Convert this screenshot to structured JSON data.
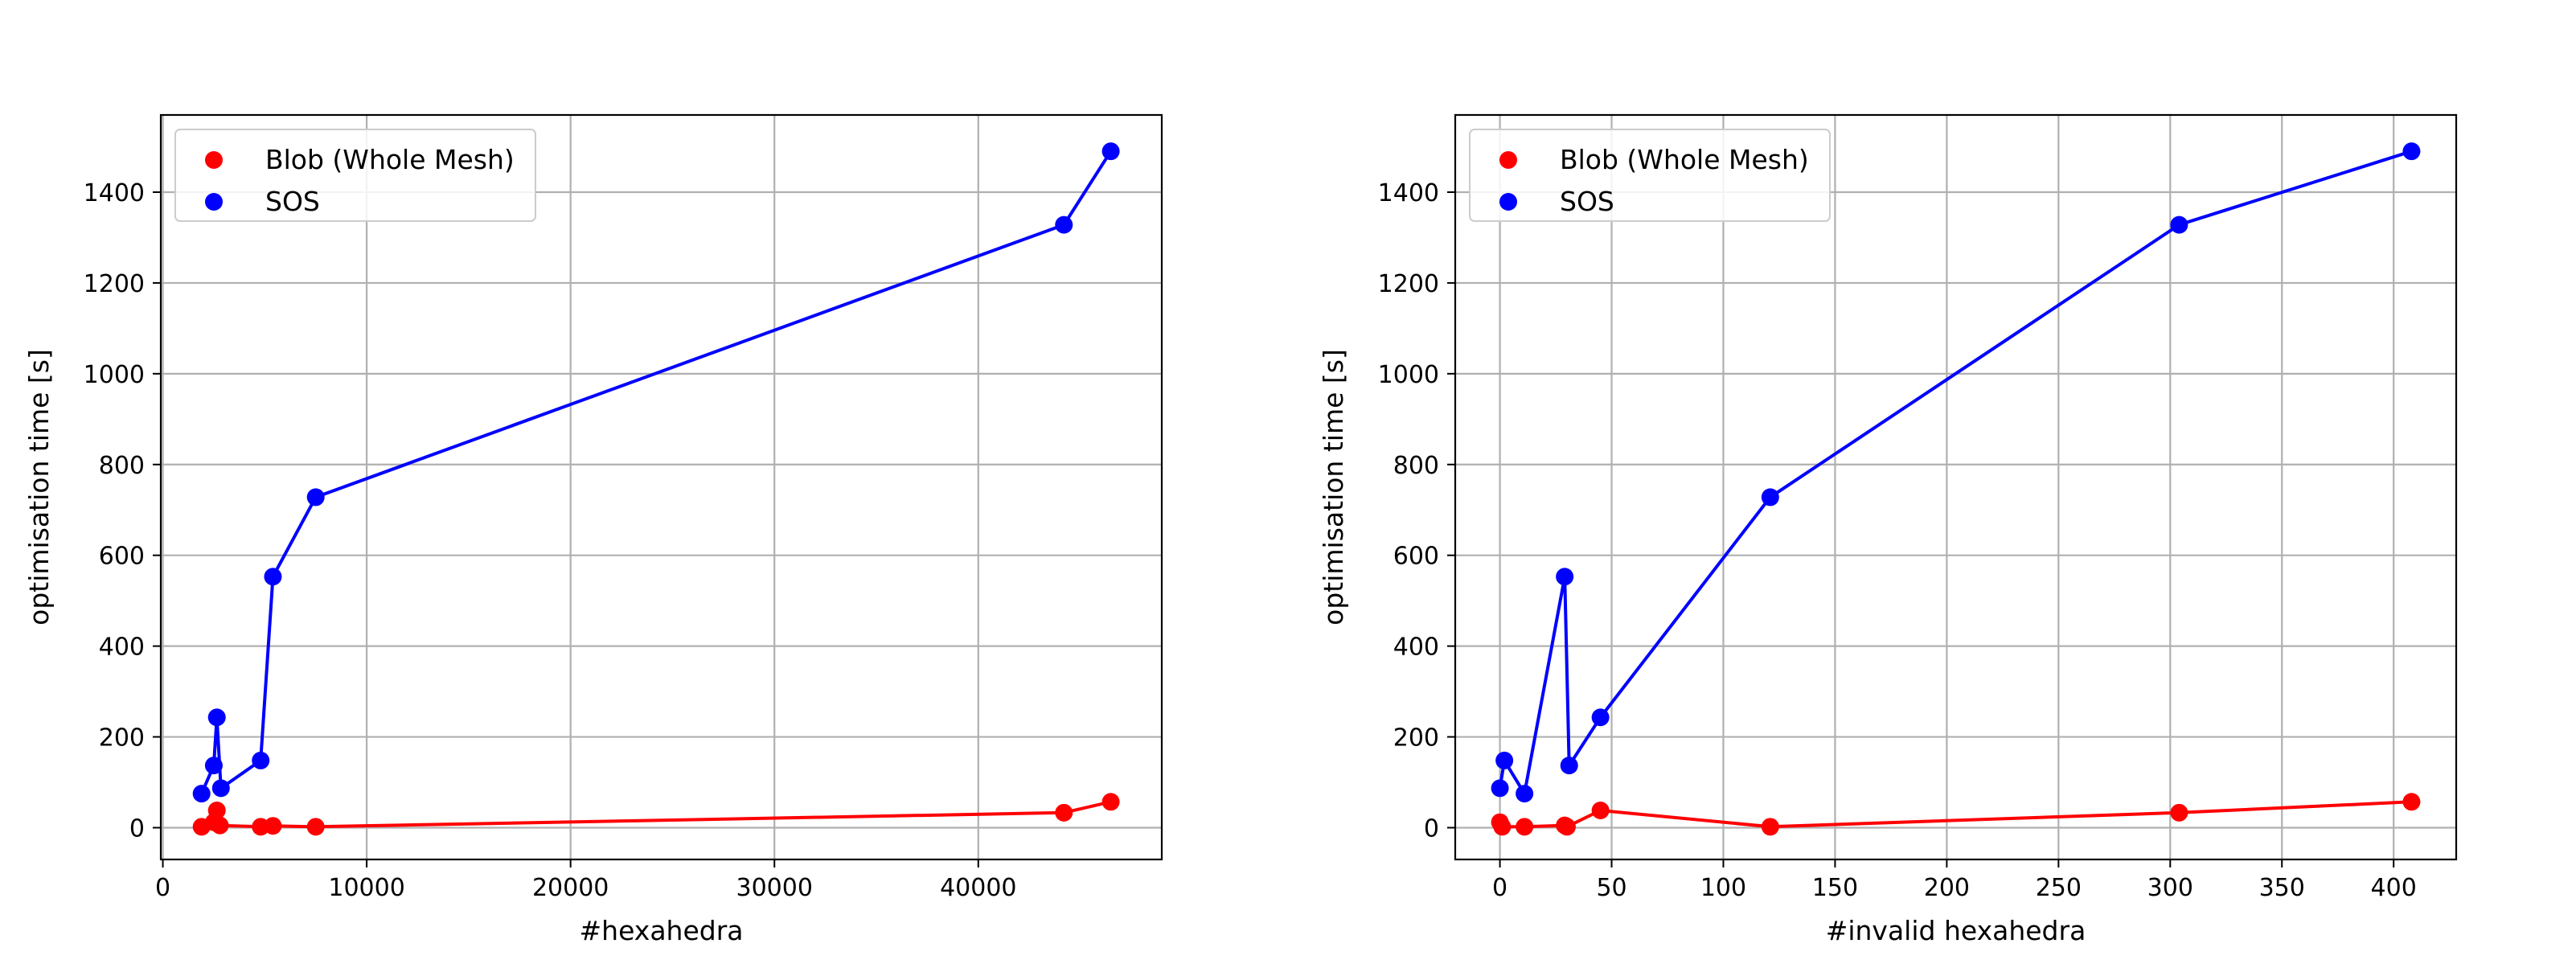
{
  "chart_data": [
    {
      "type": "scatter",
      "xlabel": "#hexahedra",
      "ylabel": "optimisation time [s]",
      "xlim": [
        -100,
        49000
      ],
      "ylim": [
        -70,
        1570
      ],
      "xticks": [
        0,
        10000,
        20000,
        30000,
        40000
      ],
      "yticks": [
        0,
        200,
        400,
        600,
        800,
        1000,
        1200,
        1400
      ],
      "grid": true,
      "legend": "top-left",
      "series": [
        {
          "name": "Blob (Whole Mesh)",
          "color": "#ff0000",
          "x": [
            1900,
            2500,
            2650,
            2800,
            4800,
            5400,
            7500,
            44200,
            46500
          ],
          "y": [
            2,
            12,
            38,
            5,
            2,
            4,
            2,
            33,
            57
          ]
        },
        {
          "name": "SOS",
          "color": "#0000ff",
          "x": [
            1900,
            2500,
            2650,
            2850,
            4800,
            5400,
            7500,
            44200,
            46500
          ],
          "y": [
            75,
            137,
            243,
            87,
            148,
            553,
            728,
            1328,
            1490
          ]
        }
      ]
    },
    {
      "type": "scatter",
      "xlabel": "#invalid hexahedra",
      "ylabel": "optimisation time [s]",
      "xlim": [
        -20,
        428
      ],
      "ylim": [
        -70,
        1570
      ],
      "xticks": [
        0,
        50,
        100,
        150,
        200,
        250,
        300,
        350,
        400
      ],
      "yticks": [
        0,
        200,
        400,
        600,
        800,
        1000,
        1200,
        1400
      ],
      "grid": true,
      "legend": "top-left",
      "series": [
        {
          "name": "Blob (Whole Mesh)",
          "color": "#ff0000",
          "x": [
            0,
            1,
            11,
            29,
            30,
            45,
            121,
            304,
            408
          ],
          "y": [
            12,
            2,
            2,
            5,
            2,
            38,
            2,
            33,
            57
          ]
        },
        {
          "name": "SOS",
          "color": "#0000ff",
          "x": [
            0,
            2,
            11,
            29,
            31,
            45,
            121,
            304,
            408
          ],
          "y": [
            87,
            148,
            75,
            553,
            137,
            243,
            728,
            1328,
            1490
          ]
        }
      ]
    }
  ]
}
